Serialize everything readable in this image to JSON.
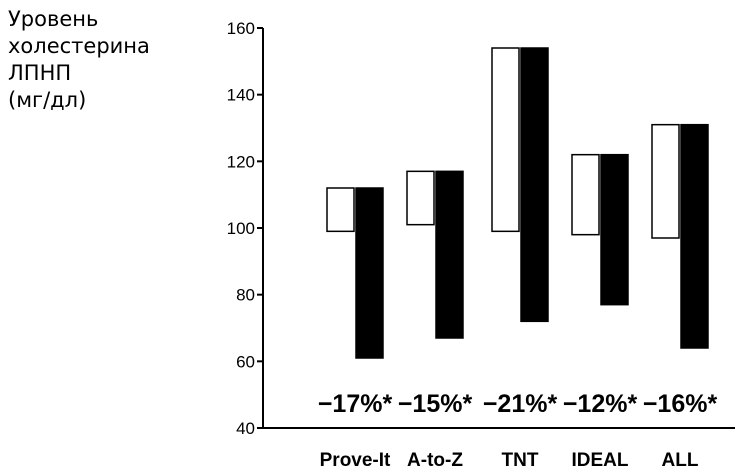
{
  "chart_data": {
    "type": "bar",
    "ylabel_lines": [
      "Уровень",
      "холестерина",
      "ЛПНП",
      "(мг/дл)"
    ],
    "ylim": [
      40,
      160
    ],
    "yticks": [
      40,
      60,
      80,
      100,
      120,
      140,
      160
    ],
    "categories": [
      "Prove-It",
      "A-to-Z",
      "TNT",
      "IDEAL",
      "ALL"
    ],
    "series": [
      {
        "fill": "#ffffff",
        "ranges": [
          [
            99,
            112
          ],
          [
            101,
            117
          ],
          [
            99,
            154
          ],
          [
            98,
            122
          ],
          [
            97,
            131
          ]
        ]
      },
      {
        "fill": "#000000",
        "ranges": [
          [
            61,
            112
          ],
          [
            67,
            117
          ],
          [
            72,
            154
          ],
          [
            77,
            122
          ],
          [
            64,
            131
          ]
        ]
      }
    ],
    "annotations": [
      "−17%*",
      "−15%*",
      "−21%*",
      "−12%*",
      "−16%*"
    ],
    "grid": false
  }
}
